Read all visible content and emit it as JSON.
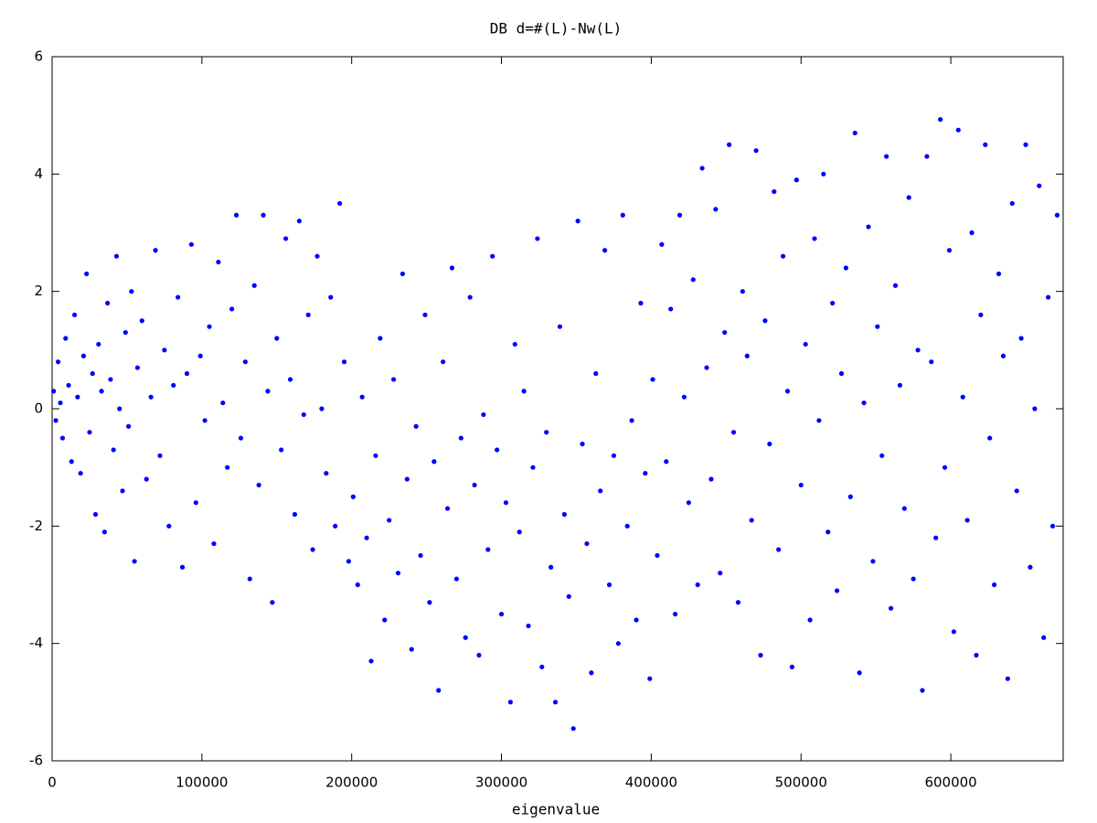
{
  "chart_data": {
    "type": "scatter",
    "title": "DB   d=#(L)-Nw(L)",
    "x_label": "eigenvalue",
    "color": "#0000ff",
    "x": [
      1000,
      2500,
      4000,
      5500,
      7000,
      9000,
      11000,
      13000,
      15000,
      17000,
      19000,
      21000,
      23000,
      25000,
      27000,
      29000,
      31000,
      33000,
      35000,
      37000,
      39000,
      41000,
      43000,
      45000,
      47000,
      49000,
      51000,
      53000,
      55000,
      57000,
      60000,
      63000,
      66000,
      69000,
      72000,
      75000,
      78000,
      81000,
      84000,
      87000,
      90000,
      93000,
      96000,
      99000,
      102000,
      105000,
      108000,
      111000,
      114000,
      117000,
      120000,
      123000,
      126000,
      129000,
      132000,
      135000,
      138000,
      141000,
      144000,
      147000,
      150000,
      153000,
      156000,
      159000,
      162000,
      165000,
      168000,
      171000,
      174000,
      177000,
      180000,
      183000,
      186000,
      189000,
      192000,
      195000,
      198000,
      201000,
      204000,
      207000,
      210000,
      213000,
      216000,
      219000,
      222000,
      225000,
      228000,
      231000,
      234000,
      237000,
      240000,
      243000,
      246000,
      249000,
      252000,
      255000,
      258000,
      261000,
      264000,
      267000,
      270000,
      273000,
      276000,
      279000,
      282000,
      285000,
      288000,
      291000,
      294000,
      297000,
      300000,
      303000,
      306000,
      309000,
      312000,
      315000,
      318000,
      321000,
      324000,
      327000,
      330000,
      333000,
      336000,
      339000,
      342000,
      345000,
      348000,
      351000,
      354000,
      357000,
      360000,
      363000,
      366000,
      369000,
      372000,
      375000,
      378000,
      381000,
      384000,
      387000,
      390000,
      393000,
      396000,
      399000,
      401000,
      404000,
      407000,
      410000,
      413000,
      416000,
      419000,
      422000,
      425000,
      428000,
      431000,
      434000,
      437000,
      440000,
      443000,
      446000,
      449000,
      452000,
      455000,
      458000,
      461000,
      464000,
      467000,
      470000,
      473000,
      476000,
      479000,
      482000,
      485000,
      488000,
      491000,
      494000,
      497000,
      500000,
      503000,
      506000,
      509000,
      512000,
      515000,
      518000,
      521000,
      524000,
      527000,
      530000,
      533000,
      536000,
      539000,
      542000,
      545000,
      548000,
      551000,
      554000,
      557000,
      560000,
      563000,
      566000,
      569000,
      572000,
      575000,
      578000,
      581000,
      584000,
      587000,
      590000,
      593000,
      596000,
      599000,
      602000,
      605000,
      608000,
      611000,
      614000,
      617000,
      620000,
      623000,
      626000,
      629000,
      632000,
      635000,
      638000,
      641000,
      644000,
      647000,
      650000,
      653000,
      656000,
      659000,
      662000,
      665000,
      668000,
      671000
    ],
    "values": [
      0.3,
      -0.2,
      0.8,
      0.1,
      -0.5,
      1.2,
      0.4,
      -0.9,
      1.6,
      0.2,
      -1.1,
      0.9,
      2.3,
      -0.4,
      0.6,
      -1.8,
      1.1,
      0.3,
      -2.1,
      1.8,
      0.5,
      -0.7,
      2.6,
      0.0,
      -1.4,
      1.3,
      -0.3,
      2.0,
      -2.6,
      0.7,
      1.5,
      -1.2,
      0.2,
      2.7,
      -0.8,
      1.0,
      -2.0,
      0.4,
      1.9,
      -2.7,
      0.6,
      2.8,
      -1.6,
      0.9,
      -0.2,
      1.4,
      -2.3,
      2.5,
      0.1,
      -1.0,
      1.7,
      3.3,
      -0.5,
      0.8,
      -2.9,
      2.1,
      -1.3,
      3.3,
      0.3,
      -3.3,
      1.2,
      -0.7,
      2.9,
      0.5,
      -1.8,
      3.2,
      -0.1,
      1.6,
      -2.4,
      2.6,
      0.0,
      -1.1,
      1.9,
      -2.0,
      3.5,
      0.8,
      -2.6,
      -1.5,
      -3.0,
      0.2,
      -2.2,
      -4.3,
      -0.8,
      1.2,
      -3.6,
      -1.9,
      0.5,
      -2.8,
      2.3,
      -1.2,
      -4.1,
      -0.3,
      -2.5,
      1.6,
      -3.3,
      -0.9,
      -4.8,
      0.8,
      -1.7,
      2.4,
      -2.9,
      -0.5,
      -3.9,
      1.9,
      -1.3,
      -4.2,
      -0.1,
      -2.4,
      2.6,
      -0.7,
      -3.5,
      -1.6,
      -5.0,
      1.1,
      -2.1,
      0.3,
      -3.7,
      -1.0,
      2.9,
      -4.4,
      -0.4,
      -2.7,
      -5.0,
      1.4,
      -1.8,
      -3.2,
      -5.45,
      3.2,
      -0.6,
      -2.3,
      -4.5,
      0.6,
      -1.4,
      2.7,
      -3.0,
      -0.8,
      -4.0,
      3.3,
      -2.0,
      -0.2,
      -3.6,
      1.8,
      -1.1,
      -4.6,
      0.5,
      -2.5,
      2.8,
      -0.9,
      1.7,
      -3.5,
      3.3,
      0.2,
      -1.6,
      2.2,
      -3.0,
      4.1,
      0.7,
      -1.2,
      3.4,
      -2.8,
      1.3,
      4.5,
      -0.4,
      -3.3,
      2.0,
      0.9,
      -1.9,
      4.4,
      -4.2,
      1.5,
      -0.6,
      3.7,
      -2.4,
      2.6,
      0.3,
      -4.4,
      3.9,
      -1.3,
      1.1,
      -3.6,
      2.9,
      -0.2,
      4.0,
      -2.1,
      1.8,
      -3.1,
      0.6,
      2.4,
      -1.5,
      4.7,
      -4.5,
      0.1,
      3.1,
      -2.6,
      1.4,
      -0.8,
      4.3,
      -3.4,
      2.1,
      0.4,
      -1.7,
      3.6,
      -2.9,
      1.0,
      -4.8,
      4.3,
      0.8,
      -2.2,
      4.93,
      -1.0,
      2.7,
      -3.8,
      4.75,
      0.2,
      -1.9,
      3.0,
      -4.2,
      1.6,
      4.5,
      -0.5,
      -3.0,
      2.3,
      0.9,
      -4.6,
      3.5,
      -1.4,
      1.2,
      4.5,
      -2.7,
      0.0,
      3.8,
      -3.9,
      1.9,
      -2.0,
      3.3
    ],
    "xlim": [
      0,
      675000
    ],
    "xticks": [
      0,
      100000,
      200000,
      300000,
      400000,
      500000,
      600000
    ],
    "ylim": [
      -6,
      6
    ],
    "yticks": [
      -6,
      -4,
      -2,
      0,
      2,
      4,
      6
    ]
  }
}
